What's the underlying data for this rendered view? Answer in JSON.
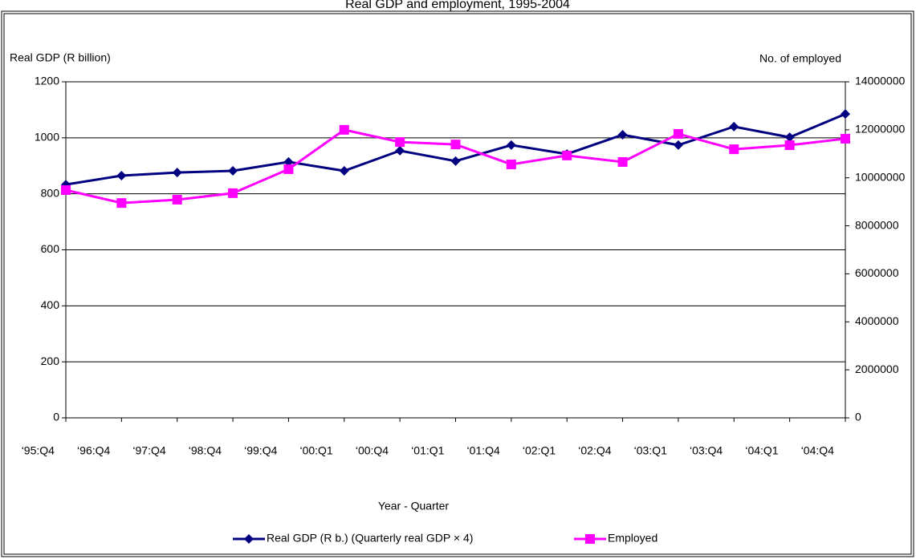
{
  "chart_data": {
    "type": "line",
    "title": "Real GDP and employment, 1995-2004",
    "y_label": "Real GDP (R billion)",
    "y2_label": "No. of employed",
    "x_label": "Year - Quarter",
    "categories": [
      "‘95:Q4",
      "‘96:Q4",
      "‘97:Q4",
      "‘98:Q4",
      "‘99:Q4",
      "‘00:Q1",
      "‘00:Q4",
      "‘01:Q1",
      "‘01:Q4",
      "‘02:Q1",
      "‘02:Q4",
      "‘03:Q1",
      "‘03:Q4",
      "‘04:Q1",
      "‘04:Q4"
    ],
    "series": [
      {
        "name": "Real GDP (R b.) (Quarterly real GDP × 4)",
        "color": "#000080",
        "marker": "diamond",
        "values": [
          833,
          865,
          876,
          882,
          914,
          882,
          954,
          917,
          974,
          942,
          1011,
          974,
          1040,
          1002,
          1085
        ]
      },
      {
        "name": "Employed",
        "color": "#ff00ff",
        "marker": "square",
        "axis": "y2",
        "values": [
          9490000,
          8950000,
          9090000,
          9360000,
          10360000,
          12000000,
          11490000,
          11390000,
          10560000,
          10930000,
          10660000,
          11830000,
          11190000,
          11360000,
          11630000
        ]
      }
    ],
    "ylim": [
      0,
      1200
    ],
    "yticks": [
      0,
      200,
      400,
      600,
      800,
      1000,
      1200
    ],
    "y2lim": [
      0,
      14000000
    ],
    "y2ticks": [
      0,
      2000000,
      4000000,
      6000000,
      8000000,
      10000000,
      12000000,
      14000000
    ],
    "grid": true
  }
}
